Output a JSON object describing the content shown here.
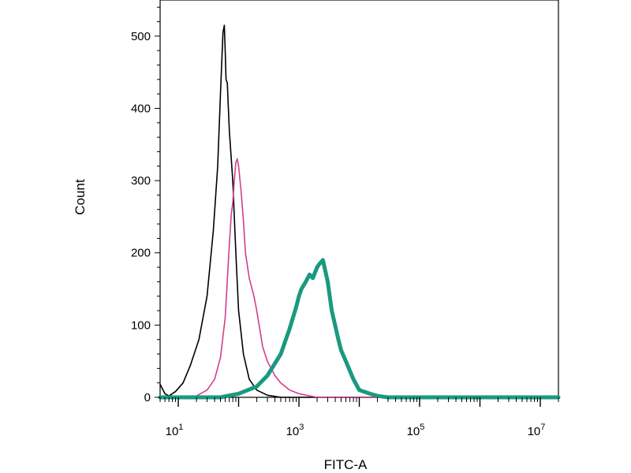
{
  "chart_data": {
    "type": "line",
    "title": "",
    "xlabel": "FITC-A",
    "ylabel": "Count",
    "x_scale": "log",
    "xlim": [
      5,
      20000000
    ],
    "ylim": [
      0,
      550
    ],
    "grid": false,
    "x_ticks": [
      {
        "base": "10",
        "exp": "1",
        "value": 10
      },
      {
        "base": "10",
        "exp": "3",
        "value": 1000
      },
      {
        "base": "10",
        "exp": "5",
        "value": 100000
      },
      {
        "base": "10",
        "exp": "7",
        "value": 10000000
      }
    ],
    "y_ticks": [
      {
        "label": "0",
        "value": 0
      },
      {
        "label": "100",
        "value": 100
      },
      {
        "label": "200",
        "value": 200
      },
      {
        "label": "300",
        "value": 300
      },
      {
        "label": "400",
        "value": 400
      },
      {
        "label": "500",
        "value": 500
      }
    ],
    "series": [
      {
        "color": "#000000",
        "style": "thin",
        "x": [
          5,
          6,
          7,
          9,
          12,
          16,
          22,
          30,
          38,
          45,
          50,
          55,
          58,
          60,
          62,
          65,
          70,
          80,
          90,
          100,
          120,
          150,
          200,
          300,
          500,
          1000,
          20000000
        ],
        "y": [
          18,
          5,
          2,
          8,
          20,
          45,
          80,
          140,
          230,
          320,
          420,
          505,
          515,
          480,
          440,
          435,
          370,
          300,
          200,
          120,
          60,
          25,
          10,
          3,
          0,
          0,
          0
        ]
      },
      {
        "color": "#d0408a",
        "style": "thin",
        "x": [
          5,
          20,
          30,
          40,
          50,
          60,
          70,
          75,
          80,
          85,
          90,
          95,
          100,
          110,
          120,
          130,
          150,
          180,
          200,
          250,
          300,
          400,
          500,
          700,
          1000,
          1500,
          2000,
          20000000
        ],
        "y": [
          0,
          2,
          10,
          25,
          55,
          110,
          210,
          250,
          270,
          300,
          325,
          330,
          320,
          285,
          245,
          200,
          165,
          140,
          120,
          70,
          50,
          30,
          20,
          10,
          5,
          2,
          0,
          0
        ]
      },
      {
        "color": "#1a9980",
        "style": "thick",
        "x": [
          5,
          50,
          100,
          200,
          300,
          500,
          700,
          900,
          1000,
          1100,
          1300,
          1500,
          1700,
          2000,
          2200,
          2500,
          3000,
          3500,
          4500,
          5000,
          6000,
          8000,
          10000,
          15000,
          20000,
          30000,
          20000000
        ],
        "y": [
          0,
          0,
          5,
          15,
          30,
          60,
          95,
          125,
          140,
          150,
          160,
          170,
          165,
          180,
          185,
          190,
          160,
          120,
          80,
          65,
          50,
          25,
          10,
          5,
          2,
          0,
          0
        ]
      }
    ]
  }
}
